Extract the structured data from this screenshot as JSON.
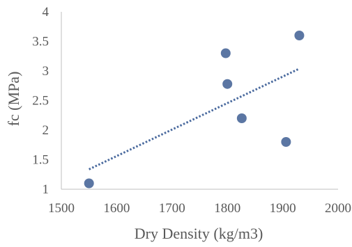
{
  "chart_data": {
    "type": "scatter",
    "title": "",
    "xlabel": "Dry Density (kg/m3)",
    "ylabel": "fc (MPa)",
    "xlim": [
      1500,
      2000
    ],
    "ylim": [
      1,
      4
    ],
    "xticks": [
      "1500",
      "1600",
      "1700",
      "1800",
      "1900",
      "2000"
    ],
    "yticks": [
      "1",
      "1.5",
      "2",
      "2.5",
      "3",
      "3.5",
      "4"
    ],
    "grid": false,
    "legend": "none",
    "points": [
      {
        "x": 1550,
        "y": 1.1
      },
      {
        "x": 1797,
        "y": 3.3
      },
      {
        "x": 1800,
        "y": 2.78
      },
      {
        "x": 1826,
        "y": 2.2
      },
      {
        "x": 1906,
        "y": 1.8
      },
      {
        "x": 1930,
        "y": 3.6
      }
    ],
    "trendline": {
      "type": "linear",
      "style": "dotted",
      "x_start": 1550,
      "x_end": 1930
    },
    "marker_color": "#5b76a3",
    "trend_color": "#4a6a9e",
    "axis_color": "#bfbfbf"
  }
}
